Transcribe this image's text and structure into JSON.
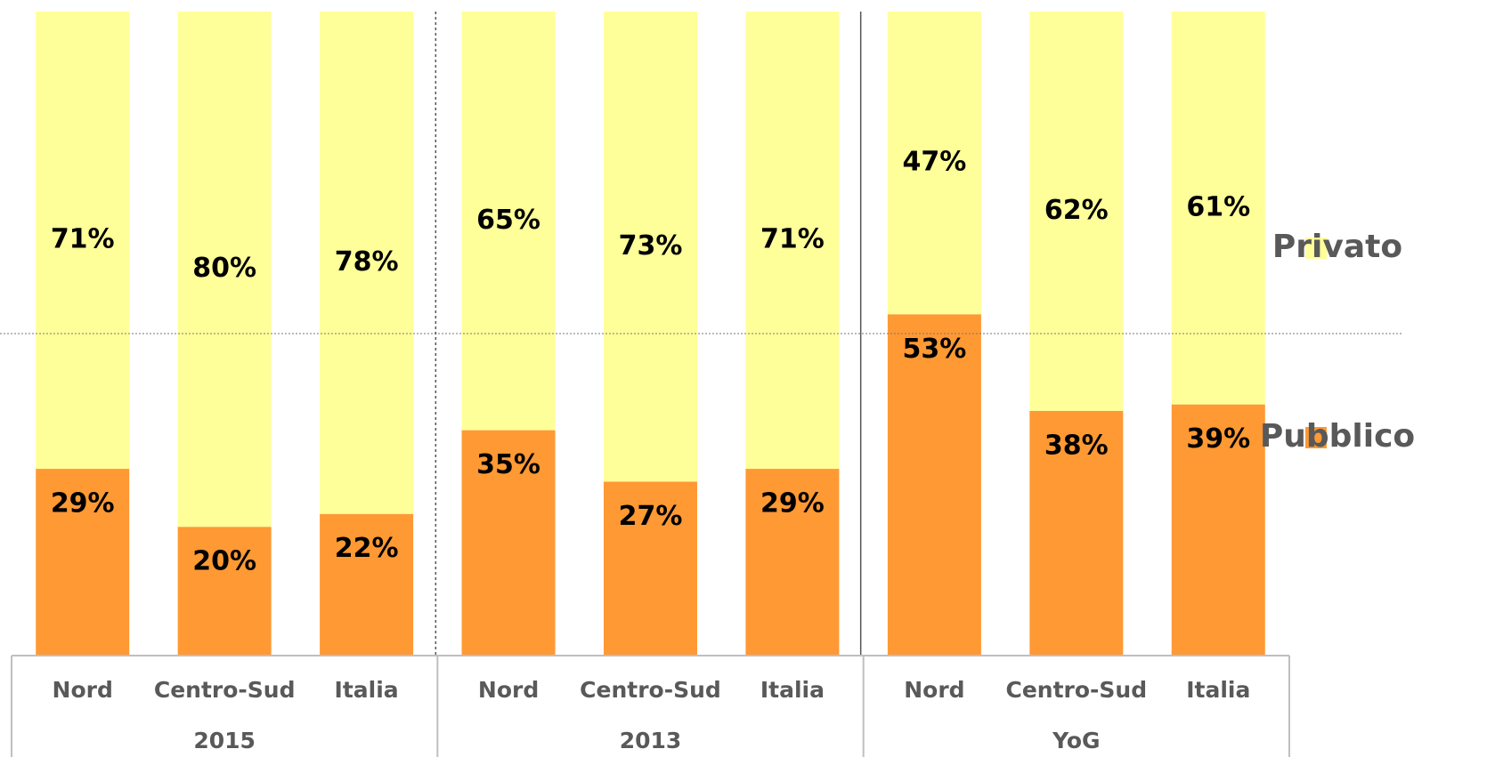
{
  "chart_data": {
    "type": "stacked_bar",
    "categories": [
      "Nord",
      "Centro-Sud",
      "Italia",
      "Nord",
      "Centro-Sud",
      "Italia",
      "Nord",
      "Centro-Sud",
      "Italia"
    ],
    "groups": [
      "2015",
      "2013",
      "YoG"
    ],
    "series": [
      {
        "name": "Pubblico",
        "color": "#ff9933",
        "values": [
          29,
          20,
          22,
          35,
          27,
          29,
          53,
          38,
          39
        ],
        "value_labels": [
          "29%",
          "20%",
          "22%",
          "35%",
          "27%",
          "29%",
          "53%",
          "38%",
          "39%"
        ]
      },
      {
        "name": "Privato",
        "color": "#ffff99",
        "values": [
          71,
          80,
          78,
          65,
          73,
          71,
          47,
          62,
          61
        ],
        "value_labels": [
          "71%",
          "80%",
          "78%",
          "65%",
          "73%",
          "71%",
          "47%",
          "62%",
          "61%"
        ]
      }
    ],
    "ylim": [
      0,
      100
    ],
    "hline": 50,
    "legend": "right"
  }
}
